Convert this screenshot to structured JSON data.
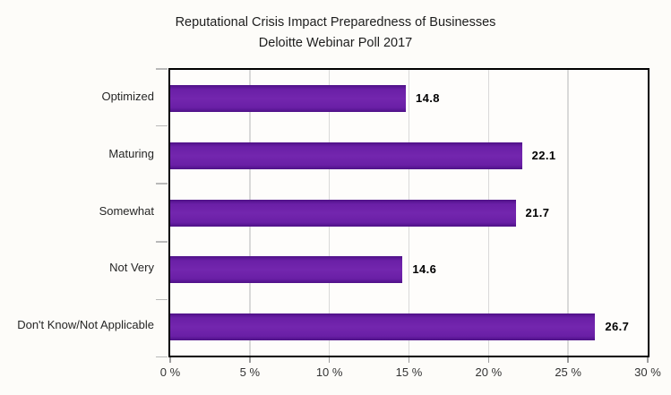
{
  "title": "Reputational Crisis Impact Preparedness of Businesses",
  "subtitle": "Deloitte Webinar Poll 2017",
  "chart_data": {
    "type": "bar",
    "orientation": "horizontal",
    "title": "Reputational Crisis Impact Preparedness of Businesses",
    "subtitle": "Deloitte Webinar Poll 2017",
    "categories": [
      "Optimized",
      "Maturing",
      "Somewhat",
      "Not Very",
      "Don't Know/Not Applicable"
    ],
    "values": [
      14.8,
      22.1,
      21.7,
      14.6,
      26.7
    ],
    "value_labels": [
      "14.8",
      "22.1",
      "21.7",
      "14.6",
      "26.7"
    ],
    "xlabel": "",
    "ylabel": "",
    "xlim": [
      0,
      30
    ],
    "x_tick_values": [
      0,
      5,
      10,
      15,
      20,
      25,
      30
    ],
    "x_tick_labels": [
      "0 %",
      "5 %",
      "10 %",
      "15 %",
      "20 %",
      "25 %",
      "30 %"
    ],
    "grid": "vertical gridlines at 5% steps",
    "legend": "none",
    "bar_color": "#6D21A9",
    "bar_edge_color": "#4E1187",
    "frame_color": "#000000",
    "gridline_color": "#D9D9D9",
    "background_color": "#FDFCF9"
  }
}
